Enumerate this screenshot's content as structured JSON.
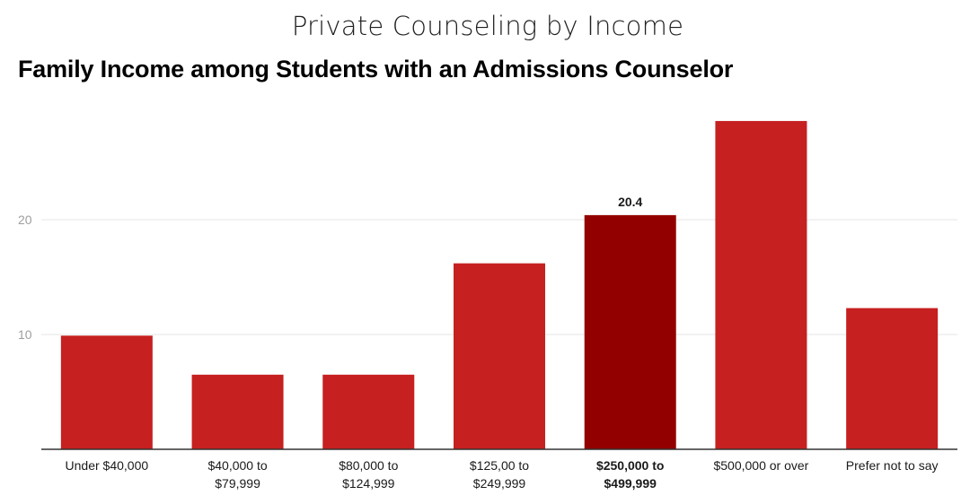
{
  "chart_data": {
    "type": "bar",
    "title": "Private Counseling by Income",
    "subtitle": "Family Income among Students with an Admissions Counselor",
    "xlabel": "",
    "ylabel": "",
    "ylim": [
      0,
      30
    ],
    "yticks": [
      "10",
      "20"
    ],
    "grid": true,
    "categories": [
      [
        "Under $40,000"
      ],
      [
        "$40,000 to",
        "$79,999"
      ],
      [
        "$80,000 to",
        "$124,999"
      ],
      [
        "$125,00 to",
        "$249,999"
      ],
      [
        "$250,000 to",
        "$499,999"
      ],
      [
        "$500,000 or over"
      ],
      [
        "Prefer not to say"
      ]
    ],
    "values": [
      9.9,
      6.5,
      6.5,
      16.2,
      20.4,
      28.6,
      12.3
    ],
    "highlight_index": 4,
    "data_labels": [
      "",
      "",
      "",
      "",
      "20.4",
      "",
      ""
    ],
    "colors": {
      "bar": "#c62020",
      "highlight": "#930000",
      "grid": "#e6e6e6",
      "axis": "#333333"
    }
  }
}
